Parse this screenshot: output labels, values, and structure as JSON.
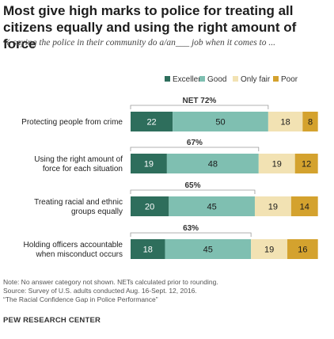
{
  "title": "Most give high marks to police for treating all citizens equally and using the right amount of force",
  "subtitle": "% saying the police in their community do a/an___ job when it comes to ...",
  "chart_data": {
    "type": "bar",
    "orientation": "horizontal",
    "stacked": true,
    "categories": [
      "Protecting people from crime",
      "Using the right amount of force for each situation",
      "Treating racial and ethnic groups equally",
      "Holding officers accountable when misconduct occurs"
    ],
    "category_lines": [
      [
        "Protecting people from crime"
      ],
      [
        "Using the right amount of",
        "force for each situation"
      ],
      [
        "Treating racial and ethnic",
        "groups equally"
      ],
      [
        "Holding officers accountable",
        "when misconduct occurs"
      ]
    ],
    "series": [
      {
        "name": "Excellent",
        "color": "#2e6e5c",
        "text_color": "#ffffff",
        "values": [
          22,
          19,
          20,
          18
        ]
      },
      {
        "name": "Good",
        "color": "#7fbfb1",
        "text_color": "#1a1a1a",
        "values": [
          50,
          48,
          45,
          45
        ]
      },
      {
        "name": "Only fair",
        "color": "#f2e2b3",
        "text_color": "#1a1a1a",
        "values": [
          18,
          19,
          19,
          19
        ]
      },
      {
        "name": "Poor",
        "color": "#d4a22e",
        "text_color": "#1a1a1a",
        "values": [
          8,
          12,
          14,
          16
        ]
      }
    ],
    "net_labels": [
      "NET 72%",
      "67%",
      "65%",
      "63%"
    ],
    "net_values": [
      72,
      67,
      65,
      63
    ],
    "legend_position": "top",
    "grid": false
  },
  "notes": [
    "Note: No answer category not shown. NETs calculated prior to rounding.",
    "Source: Survey of U.S. adults conducted Aug. 16-Sept. 12, 2016.",
    "“The Racial Confidence Gap in Police Performance”"
  ],
  "source_org": "PEW RESEARCH CENTER"
}
